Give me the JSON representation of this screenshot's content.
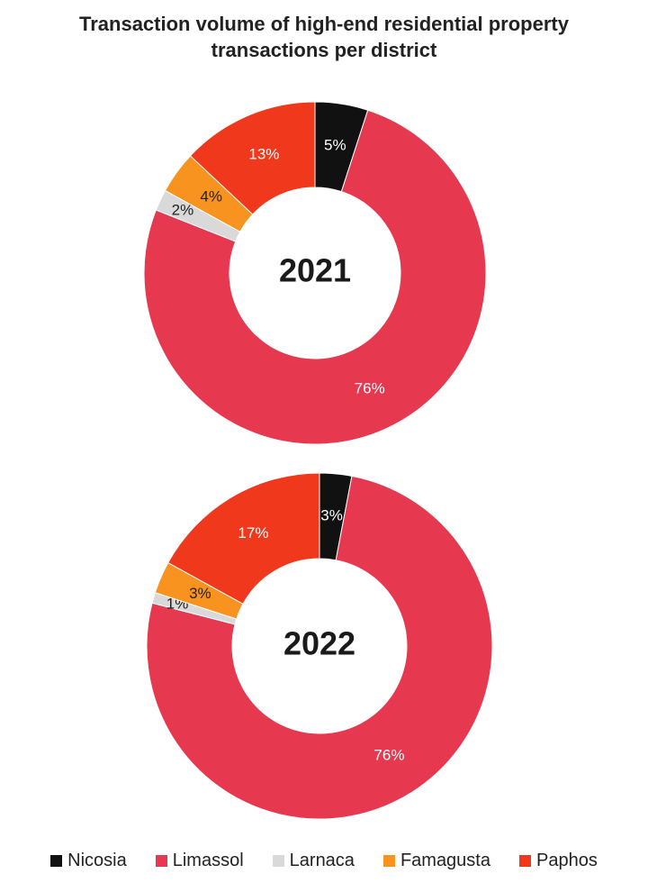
{
  "title": "Transaction volume of high-end residential property transactions per district",
  "chart_data": [
    {
      "type": "donut",
      "center_label": "2021",
      "categories": [
        "Nicosia",
        "Limassol",
        "Larnaca",
        "Famagusta",
        "Paphos"
      ],
      "values": [
        5,
        76,
        2,
        4,
        13
      ],
      "value_labels": [
        "5%",
        "76%",
        "2%",
        "4%",
        "13%"
      ],
      "colors": [
        "#111111",
        "#e63950",
        "#d9d9d9",
        "#f7931e",
        "#f0381c"
      ]
    },
    {
      "type": "donut",
      "center_label": "2022",
      "categories": [
        "Nicosia",
        "Limassol",
        "Larnaca",
        "Famagusta",
        "Paphos"
      ],
      "values": [
        3,
        76,
        1,
        3,
        17
      ],
      "value_labels": [
        "3%",
        "76%",
        "1%",
        "3%",
        "17%"
      ],
      "colors": [
        "#111111",
        "#e63950",
        "#d9d9d9",
        "#f7931e",
        "#f0381c"
      ]
    }
  ]
}
